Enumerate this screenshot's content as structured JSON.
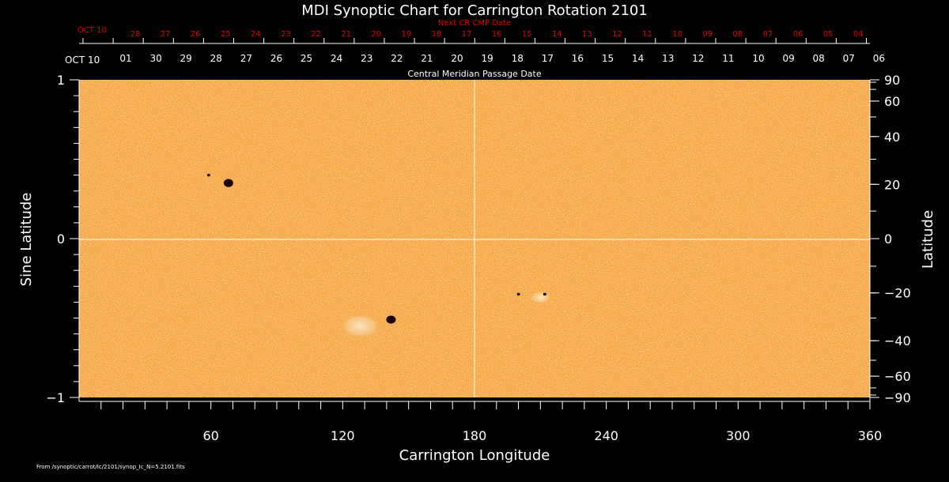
{
  "chart_data": {
    "type": "heatmap",
    "title": "MDI Synoptic Chart for Carrington Rotation 2101",
    "xlabel": "Carrington Longitude",
    "ylabel_left": "Sine Latitude",
    "ylabel_right": "Latitude",
    "xlim": [
      0,
      360
    ],
    "ylim": [
      -1,
      1
    ],
    "x_ticks": [
      "60",
      "120",
      "180",
      "240",
      "300",
      "360"
    ],
    "y_ticks_left": [
      "1",
      "0",
      "−1"
    ],
    "y_ticks_right": [
      "90",
      "60",
      "40",
      "20",
      "0",
      "−20",
      "−40",
      "−60",
      "−90"
    ],
    "top_axis_label": "Central Meridian Passage Date",
    "top_axis_start": "OCT 10",
    "top_axis_dates": [
      "01",
      "30",
      "29",
      "28",
      "27",
      "26",
      "25",
      "24",
      "23",
      "22",
      "21",
      "20",
      "19",
      "18",
      "17",
      "16",
      "15",
      "14",
      "13",
      "12",
      "11",
      "10",
      "09",
      "08",
      "07",
      "06"
    ],
    "next_cr_label": "Next CR CMP Date",
    "next_cr_start": "OCT 10",
    "next_cr_dates": [
      "28",
      "27",
      "26",
      "25",
      "24",
      "23",
      "22",
      "21",
      "20",
      "19",
      "18",
      "17",
      "16",
      "15",
      "14",
      "13",
      "12",
      "11",
      "10",
      "09",
      "08",
      "07",
      "06",
      "05",
      "04"
    ],
    "grid_lines": [
      "longitude 180",
      "sine latitude 0"
    ],
    "colors": {
      "background": "#f4a33e",
      "sunspot": "#1a0000",
      "plage": "#f9e0b8",
      "text": "#ffffff",
      "next_cr": "#e00000"
    },
    "features": [
      {
        "label": "sunspot",
        "longitude": 68,
        "sine_latitude": 0.35,
        "size": "large"
      },
      {
        "label": "sunspot",
        "longitude": 59,
        "sine_latitude": 0.4,
        "size": "small"
      },
      {
        "label": "sunspot",
        "longitude": 142,
        "sine_latitude": -0.51,
        "size": "large"
      },
      {
        "label": "sunspot",
        "longitude": 212,
        "sine_latitude": -0.35,
        "size": "small"
      },
      {
        "label": "sunspot",
        "longitude": 200,
        "sine_latitude": -0.35,
        "size": "small"
      },
      {
        "label": "plage",
        "longitude": 128,
        "sine_latitude": -0.55,
        "size": "large"
      },
      {
        "label": "plage",
        "longitude": 210,
        "sine_latitude": -0.37,
        "size": "medium"
      }
    ]
  },
  "footer": "From /synoptic/carrot/Ic/2101/synop_Ic_N=5.2101.fits"
}
